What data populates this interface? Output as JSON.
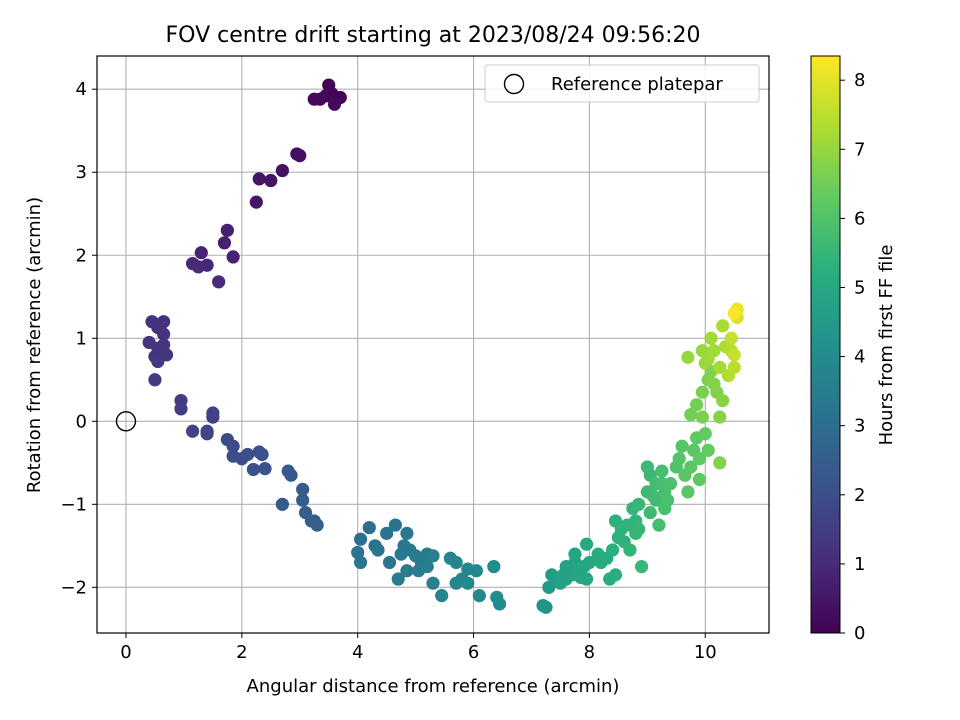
{
  "chart_data": {
    "type": "scatter",
    "title": "FOV centre drift starting at 2023/08/24 09:56:20",
    "xlabel": "Angular distance from reference (arcmin)",
    "ylabel": "Rotation from reference (arcmin)",
    "xlim": [
      -0.5,
      11.1
    ],
    "ylim": [
      -2.55,
      4.4
    ],
    "x_ticks": [
      0,
      2,
      4,
      6,
      8,
      10
    ],
    "x_tick_labels": [
      "0",
      "2",
      "4",
      "6",
      "8",
      "10"
    ],
    "y_ticks": [
      -2,
      -1,
      0,
      1,
      2,
      3,
      4
    ],
    "y_tick_labels": [
      "−2",
      "−1",
      "0",
      "1",
      "2",
      "3",
      "4"
    ],
    "grid": true,
    "legend": {
      "position": "top-right",
      "entries": [
        "Reference platepar"
      ]
    },
    "reference_point": {
      "name": "Reference platepar",
      "x": 0,
      "y": 0
    },
    "colorbar": {
      "label": "Hours from first FF file",
      "colormap": "viridis",
      "range": [
        0,
        8.35
      ],
      "ticks": [
        0,
        1,
        2,
        3,
        4,
        5,
        6,
        7,
        8
      ],
      "tick_labels": [
        "0",
        "1",
        "2",
        "3",
        "4",
        "5",
        "6",
        "7",
        "8"
      ]
    },
    "points": [
      [
        3.5,
        4.05,
        0.05
      ],
      [
        3.55,
        3.95,
        0.08
      ],
      [
        3.7,
        3.9,
        0.1
      ],
      [
        3.45,
        3.92,
        0.12
      ],
      [
        3.35,
        3.88,
        0.15
      ],
      [
        3.6,
        3.82,
        0.18
      ],
      [
        3.25,
        3.88,
        0.2
      ],
      [
        3.0,
        3.2,
        0.3
      ],
      [
        2.95,
        3.22,
        0.33
      ],
      [
        2.7,
        3.02,
        0.4
      ],
      [
        2.5,
        2.9,
        0.45
      ],
      [
        2.3,
        2.92,
        0.5
      ],
      [
        2.25,
        2.64,
        0.55
      ],
      [
        1.75,
        2.3,
        0.7
      ],
      [
        1.7,
        2.15,
        0.75
      ],
      [
        1.85,
        1.98,
        0.8
      ],
      [
        1.3,
        2.03,
        0.85
      ],
      [
        1.4,
        1.88,
        0.9
      ],
      [
        1.15,
        1.9,
        0.95
      ],
      [
        1.25,
        1.86,
        1.0
      ],
      [
        1.6,
        1.68,
        1.05
      ],
      [
        0.65,
        1.2,
        1.15
      ],
      [
        0.45,
        1.2,
        1.18
      ],
      [
        0.55,
        1.13,
        1.2
      ],
      [
        0.65,
        1.05,
        1.22
      ],
      [
        0.4,
        0.95,
        1.25
      ],
      [
        0.65,
        0.92,
        1.28
      ],
      [
        0.55,
        0.88,
        1.3
      ],
      [
        0.7,
        0.8,
        1.32
      ],
      [
        0.5,
        0.78,
        1.35
      ],
      [
        0.55,
        0.72,
        1.38
      ],
      [
        0.5,
        0.5,
        1.4
      ],
      [
        0.95,
        0.25,
        1.5
      ],
      [
        0.95,
        0.15,
        1.52
      ],
      [
        1.5,
        0.1,
        1.6
      ],
      [
        1.5,
        0.05,
        1.62
      ],
      [
        1.15,
        -0.12,
        1.7
      ],
      [
        1.4,
        -0.12,
        1.72
      ],
      [
        1.4,
        -0.15,
        1.75
      ],
      [
        1.75,
        -0.22,
        1.85
      ],
      [
        1.85,
        -0.3,
        1.88
      ],
      [
        1.85,
        -0.42,
        1.9
      ],
      [
        2.0,
        -0.45,
        1.95
      ],
      [
        2.1,
        -0.4,
        2.0
      ],
      [
        2.2,
        -0.58,
        2.02
      ],
      [
        2.3,
        -0.37,
        2.05
      ],
      [
        2.35,
        -0.4,
        2.08
      ],
      [
        2.4,
        -0.57,
        2.1
      ],
      [
        2.8,
        -0.6,
        2.3
      ],
      [
        2.85,
        -0.65,
        2.32
      ],
      [
        2.7,
        -1.0,
        2.35
      ],
      [
        3.05,
        -0.82,
        2.4
      ],
      [
        3.05,
        -0.95,
        2.42
      ],
      [
        3.1,
        -1.1,
        2.45
      ],
      [
        3.2,
        -1.2,
        2.5
      ],
      [
        3.25,
        -1.2,
        2.52
      ],
      [
        3.3,
        -1.25,
        2.55
      ],
      [
        4.2,
        -1.28,
        3.0
      ],
      [
        4.05,
        -1.42,
        3.05
      ],
      [
        4.3,
        -1.5,
        3.1
      ],
      [
        4.5,
        -1.35,
        3.12
      ],
      [
        4.65,
        -1.25,
        3.15
      ],
      [
        4.35,
        -1.55,
        3.18
      ],
      [
        4.0,
        -1.58,
        3.2
      ],
      [
        4.05,
        -1.7,
        3.22
      ],
      [
        4.55,
        -1.7,
        3.25
      ],
      [
        4.85,
        -1.35,
        3.3
      ],
      [
        4.8,
        -1.5,
        3.32
      ],
      [
        4.9,
        -1.55,
        3.35
      ],
      [
        4.75,
        -1.6,
        3.38
      ],
      [
        5.0,
        -1.62,
        3.4
      ],
      [
        4.7,
        -1.9,
        3.42
      ],
      [
        4.85,
        -1.8,
        3.45
      ],
      [
        5.1,
        -1.7,
        3.48
      ],
      [
        5.2,
        -1.6,
        3.5
      ],
      [
        5.05,
        -1.8,
        3.52
      ],
      [
        5.3,
        -1.62,
        3.55
      ],
      [
        5.2,
        -1.75,
        3.58
      ],
      [
        5.3,
        -1.95,
        3.6
      ],
      [
        5.45,
        -2.1,
        3.7
      ],
      [
        5.6,
        -1.65,
        3.75
      ],
      [
        5.7,
        -1.7,
        3.78
      ],
      [
        5.7,
        -1.95,
        3.8
      ],
      [
        5.8,
        -1.9,
        3.82
      ],
      [
        5.9,
        -1.78,
        3.85
      ],
      [
        5.9,
        -1.95,
        3.88
      ],
      [
        6.05,
        -1.8,
        3.9
      ],
      [
        6.1,
        -2.1,
        3.95
      ],
      [
        6.35,
        -1.75,
        4.0
      ],
      [
        6.4,
        -2.12,
        4.05
      ],
      [
        6.45,
        -2.2,
        4.08
      ],
      [
        7.2,
        -2.22,
        4.3
      ],
      [
        7.25,
        -2.24,
        4.32
      ],
      [
        7.3,
        -2.0,
        4.55
      ],
      [
        7.35,
        -1.85,
        4.6
      ],
      [
        7.45,
        -1.9,
        4.65
      ],
      [
        7.5,
        -1.95,
        4.7
      ],
      [
        7.55,
        -1.85,
        4.72
      ],
      [
        7.6,
        -1.9,
        4.75
      ],
      [
        7.6,
        -1.75,
        4.78
      ],
      [
        7.7,
        -1.85,
        4.8
      ],
      [
        7.75,
        -1.7,
        4.82
      ],
      [
        7.8,
        -1.8,
        4.85
      ],
      [
        7.75,
        -1.6,
        4.88
      ],
      [
        7.85,
        -1.88,
        4.9
      ],
      [
        7.9,
        -1.75,
        4.92
      ],
      [
        7.95,
        -1.9,
        4.95
      ],
      [
        8.0,
        -1.7,
        4.98
      ],
      [
        7.95,
        -1.48,
        5.0
      ],
      [
        8.15,
        -1.6,
        5.1
      ],
      [
        8.2,
        -1.7,
        5.12
      ],
      [
        8.3,
        -1.65,
        5.15
      ],
      [
        8.35,
        -1.9,
        5.2
      ],
      [
        8.45,
        -1.85,
        5.22
      ],
      [
        8.4,
        -1.55,
        5.25
      ],
      [
        8.5,
        -1.4,
        5.28
      ],
      [
        8.45,
        -1.2,
        5.3
      ],
      [
        8.55,
        -1.3,
        5.32
      ],
      [
        8.6,
        -1.45,
        5.35
      ],
      [
        8.65,
        -1.25,
        5.38
      ],
      [
        8.7,
        -1.55,
        5.4
      ],
      [
        8.8,
        -1.2,
        5.42
      ],
      [
        8.8,
        -1.35,
        5.45
      ],
      [
        8.75,
        -1.05,
        5.48
      ],
      [
        8.85,
        -1.3,
        5.5
      ],
      [
        8.9,
        -1.75,
        5.52
      ],
      [
        8.85,
        -1.0,
        5.55
      ],
      [
        9.0,
        -0.55,
        5.6
      ],
      [
        9.05,
        -0.65,
        5.62
      ],
      [
        9.0,
        -0.85,
        5.65
      ],
      [
        9.05,
        -1.1,
        5.68
      ],
      [
        9.1,
        -0.9,
        5.7
      ],
      [
        9.15,
        -0.95,
        5.72
      ],
      [
        9.15,
        -0.75,
        5.75
      ],
      [
        9.2,
        -1.25,
        5.78
      ],
      [
        9.25,
        -0.6,
        5.8
      ],
      [
        9.25,
        -0.75,
        5.82
      ],
      [
        9.3,
        -0.85,
        5.85
      ],
      [
        9.3,
        -1.05,
        5.88
      ],
      [
        9.35,
        -0.95,
        5.9
      ],
      [
        9.4,
        -0.75,
        5.92
      ],
      [
        9.5,
        -0.55,
        6.0
      ],
      [
        9.55,
        -0.45,
        6.05
      ],
      [
        9.6,
        -0.3,
        6.1
      ],
      [
        9.65,
        -0.65,
        6.12
      ],
      [
        9.7,
        -0.85,
        6.15
      ],
      [
        9.75,
        -0.55,
        6.18
      ],
      [
        9.8,
        -0.35,
        6.2
      ],
      [
        9.85,
        -0.2,
        6.22
      ],
      [
        9.9,
        -0.45,
        6.25
      ],
      [
        9.9,
        -0.7,
        6.28
      ],
      [
        10.0,
        -0.15,
        6.3
      ],
      [
        10.05,
        -0.35,
        6.32
      ],
      [
        9.75,
        0.08,
        6.5
      ],
      [
        9.85,
        0.2,
        6.55
      ],
      [
        9.95,
        0.35,
        6.6
      ],
      [
        9.95,
        0.05,
        6.62
      ],
      [
        10.05,
        0.5,
        6.65
      ],
      [
        10.1,
        0.6,
        6.7
      ],
      [
        10.2,
        0.35,
        6.72
      ],
      [
        10.25,
        -0.5,
        6.74
      ],
      [
        10.15,
        0.45,
        6.76
      ],
      [
        10.25,
        0.05,
        6.78
      ],
      [
        10.3,
        0.25,
        6.8
      ],
      [
        9.7,
        0.77,
        7.0
      ],
      [
        9.95,
        0.85,
        7.05
      ],
      [
        10.0,
        0.7,
        7.1
      ],
      [
        10.05,
        0.75,
        7.12
      ],
      [
        10.1,
        1.0,
        7.15
      ],
      [
        10.15,
        0.85,
        7.18
      ],
      [
        10.25,
        0.65,
        7.2
      ],
      [
        10.3,
        1.15,
        7.25
      ],
      [
        10.35,
        0.9,
        7.3
      ],
      [
        10.4,
        0.55,
        7.35
      ],
      [
        10.45,
        0.85,
        7.4
      ],
      [
        10.5,
        0.65,
        7.45
      ],
      [
        10.45,
        1.0,
        7.6
      ],
      [
        10.5,
        0.8,
        7.65
      ],
      [
        10.55,
        1.25,
        7.9
      ],
      [
        10.55,
        1.35,
        8.1
      ],
      [
        10.5,
        1.3,
        8.3
      ]
    ]
  }
}
